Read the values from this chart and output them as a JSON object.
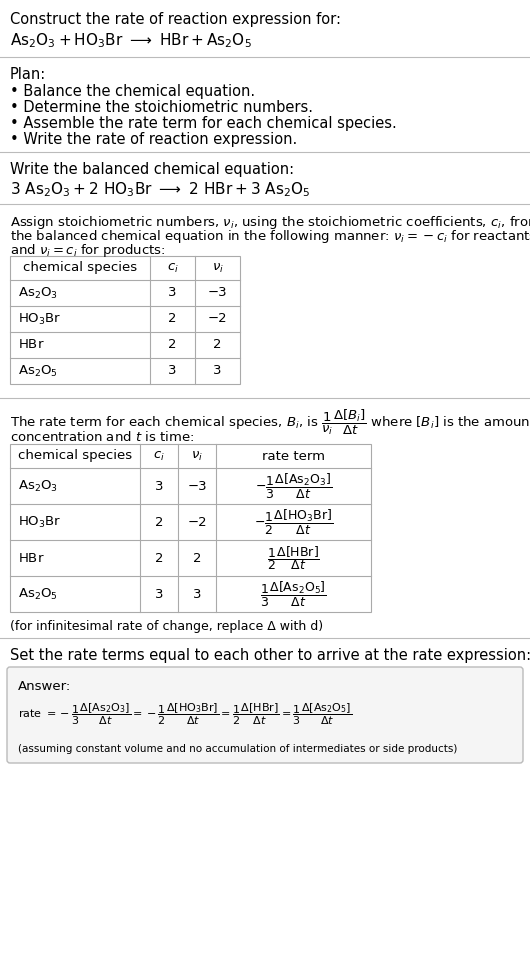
{
  "bg_color": "#ffffff",
  "text_color": "#000000",
  "title_line1": "Construct the rate of reaction expression for:",
  "plan_header": "Plan:",
  "plan_bullets": [
    "• Balance the chemical equation.",
    "• Determine the stoichiometric numbers.",
    "• Assemble the rate term for each chemical species.",
    "• Write the rate of reaction expression."
  ],
  "balanced_header": "Write the balanced chemical equation:",
  "table1_rows": [
    [
      "As₂O₃",
      "3",
      "−3"
    ],
    [
      "HO₃Br",
      "2",
      "−2"
    ],
    [
      "HBr",
      "2",
      "2"
    ],
    [
      "As₂O₅",
      "3",
      "3"
    ]
  ],
  "table2_rows": [
    [
      "As₂O₃",
      "3",
      "−3"
    ],
    [
      "HO₃Br",
      "2",
      "−2"
    ],
    [
      "HBr",
      "2",
      "2"
    ],
    [
      "As₂O₅",
      "3",
      "3"
    ]
  ],
  "infinitesimal_note": "(for infinitesimal rate of change, replace Δ with d)",
  "rate_expr_header": "Set the rate terms equal to each other to arrive at the rate expression:",
  "answer_note": "(assuming constant volume and no accumulation of intermediates or side products)"
}
